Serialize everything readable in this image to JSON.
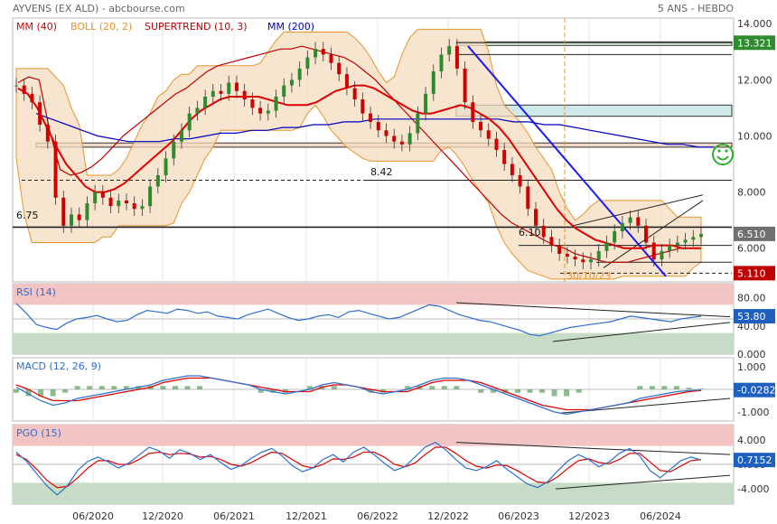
{
  "header": {
    "title": "AYVENS (EX ALD) - abcbourse.com",
    "period": "5 ANS - HEBDO"
  },
  "colors": {
    "ma40": "#e00000",
    "boll": "#e8942a",
    "supertrend": "#c00000",
    "ma200": "#0000c0",
    "price": "#2e8b2e",
    "price_down": "#d00000",
    "rsi": "#2f6fcf",
    "signal": "#e00000",
    "overbought": "#f2c4c4",
    "oversold": "#c6dcc6",
    "badge_price": "#707070",
    "badge_red": "#c00000",
    "badge_blue": "#1f5fbf",
    "badge_green": "#2e8b2e",
    "trend_blue": "#1a1aff",
    "event": "#e8942a"
  },
  "chart_data": [
    {
      "type": "line",
      "panel": "price",
      "legend": [
        {
          "text": "MM (40)",
          "color": "#e00000"
        },
        {
          "text": "BOLL (20, 2)",
          "color": "#e8942a"
        },
        {
          "text": "SUPERTREND (10, 3)",
          "color": "#c00000"
        },
        {
          "text": "MM (200)",
          "color": "#0000c0"
        }
      ],
      "x_ticks": [
        "06/2020",
        "12/2020",
        "06/2021",
        "12/2021",
        "06/2022",
        "12/2022",
        "06/2023",
        "12/2023",
        "06/2024"
      ],
      "y_ticks": [
        "14.000",
        "12.000",
        "10.000",
        "8.000",
        "6.000"
      ],
      "ylim": [
        4.8,
        14.2
      ],
      "badges": [
        {
          "text": "13.321",
          "value": 13.321,
          "color": "#2e8b2e"
        },
        {
          "text": "6.510",
          "value": 6.51,
          "color": "#707070"
        },
        {
          "text": "5.110",
          "value": 5.11,
          "color": "#c00000"
        }
      ],
      "annotations": [
        {
          "text": "8.42",
          "value": 8.42
        },
        {
          "text": "6.75",
          "value": 6.75
        },
        {
          "text": "6.10",
          "value": 6.1
        },
        {
          "text": "30/10/23",
          "date": "30/10/23"
        }
      ],
      "horizontal_levels": [
        13.321,
        12.9,
        11.1,
        10.7,
        9.75,
        9.6,
        8.42,
        6.75,
        6.1,
        5.5,
        5.11
      ],
      "price_series": [
        11.8,
        11.5,
        11.2,
        10.4,
        9.8,
        7.8,
        6.8,
        7.2,
        7.0,
        7.6,
        8.0,
        7.8,
        7.5,
        7.7,
        7.6,
        7.4,
        7.5,
        8.2,
        8.6,
        9.2,
        9.8,
        10.2,
        10.8,
        11.0,
        11.4,
        11.6,
        11.5,
        11.9,
        11.6,
        11.3,
        11.0,
        10.8,
        10.9,
        11.4,
        11.8,
        12.0,
        12.4,
        12.8,
        13.1,
        12.9,
        12.6,
        12.2,
        11.7,
        11.3,
        10.8,
        10.5,
        10.2,
        10.0,
        9.8,
        9.7,
        10.1,
        10.8,
        11.5,
        12.3,
        12.9,
        13.2,
        12.4,
        11.2,
        10.5,
        10.2,
        9.9,
        9.5,
        9.0,
        8.6,
        8.2,
        7.4,
        6.8,
        6.4,
        6.1,
        5.8,
        5.7,
        5.6,
        5.5,
        5.6,
        5.9,
        6.2,
        6.6,
        6.9,
        7.1,
        6.8,
        6.2,
        5.6,
        5.9,
        6.1,
        6.2,
        6.3,
        6.4,
        6.51
      ],
      "ma40": [
        11.7,
        11.5,
        11.0,
        10.3,
        9.6,
        9.0,
        8.6,
        8.2,
        8.0,
        8.0,
        8.1,
        8.3,
        8.6,
        8.9,
        9.2,
        9.5,
        9.8,
        10.2,
        10.6,
        10.9,
        11.1,
        11.3,
        11.4,
        11.4,
        11.4,
        11.4,
        11.3,
        11.2,
        11.1,
        11.1,
        11.1,
        11.2,
        11.4,
        11.6,
        11.7,
        11.8,
        11.8,
        11.7,
        11.5,
        11.3,
        11.1,
        10.9,
        10.8,
        10.8,
        10.9,
        11.0,
        11.1,
        11.0,
        10.8,
        10.6,
        10.3,
        9.9,
        9.4,
        8.9,
        8.4,
        7.9,
        7.4,
        7.0,
        6.7,
        6.5,
        6.3,
        6.2,
        6.1,
        6.0,
        6.0,
        6.0,
        6.1,
        6.1,
        6.1,
        6.0,
        6.0,
        6.0
      ],
      "ma200": [
        10.8,
        10.6,
        10.4,
        10.2,
        10.0,
        9.9,
        9.8,
        9.8,
        9.8,
        9.9,
        9.9,
        10.0,
        10.1,
        10.1,
        10.2,
        10.2,
        10.3,
        10.3,
        10.4,
        10.4,
        10.5,
        10.5,
        10.6,
        10.6,
        10.6,
        10.6,
        10.6,
        10.6,
        10.6,
        10.6,
        10.6,
        10.5,
        10.5,
        10.4,
        10.4,
        10.3,
        10.2,
        10.1,
        10.0,
        9.9,
        9.8,
        9.7,
        9.7,
        9.6,
        9.6
      ],
      "supertrend": [
        11.9,
        12.1,
        12.0,
        10.2,
        8.8,
        8.6,
        8.7,
        8.9,
        9.2,
        9.6,
        10.0,
        10.3,
        10.6,
        10.9,
        11.2,
        11.5,
        11.7,
        12.0,
        12.3,
        12.5,
        12.6,
        12.7,
        12.8,
        12.9,
        13.0,
        13.1,
        13.1,
        13.2,
        13.1,
        13.0,
        12.9,
        12.8,
        12.6,
        12.3,
        12.0,
        11.6,
        11.2,
        10.8,
        10.4,
        10.0,
        9.6,
        9.2,
        8.8,
        8.4,
        8.0,
        7.6,
        7.2,
        6.9,
        6.7,
        6.5,
        6.3,
        6.1,
        6.0,
        5.8,
        5.7,
        5.6,
        5.5,
        5.5,
        5.5,
        5.6,
        5.7,
        5.8,
        5.9,
        6.0,
        6.0,
        6.0
      ]
    },
    {
      "type": "line",
      "panel": "rsi",
      "legend": [
        {
          "text": "RSI (14)",
          "color": "#2f6fcf"
        }
      ],
      "y_ticks": [
        "80.00",
        "40.00",
        "0.000"
      ],
      "ylim": [
        0,
        100
      ],
      "badges": [
        {
          "text": "53.80",
          "value": 53.8,
          "color": "#1f5fbf"
        }
      ],
      "values": [
        72,
        58,
        42,
        38,
        35,
        44,
        50,
        52,
        55,
        50,
        46,
        48,
        56,
        62,
        60,
        58,
        64,
        62,
        58,
        60,
        54,
        52,
        50,
        56,
        60,
        64,
        58,
        52,
        48,
        50,
        54,
        56,
        52,
        60,
        62,
        58,
        54,
        50,
        52,
        58,
        64,
        70,
        68,
        62,
        56,
        52,
        48,
        46,
        42,
        38,
        34,
        28,
        26,
        30,
        34,
        38,
        40,
        42,
        44,
        46,
        50,
        54,
        52,
        50,
        48,
        46,
        50,
        52,
        53.8
      ]
    },
    {
      "type": "line",
      "panel": "macd",
      "legend": [
        {
          "text": "MACD (12, 26, 9)",
          "color": "#2f6fcf"
        }
      ],
      "y_ticks": [
        "1.000",
        "0.000",
        "-1.000"
      ],
      "ylim": [
        -1.4,
        1.4
      ],
      "badges": [
        {
          "text": "-0.0282",
          "value": -0.0282,
          "color": "#1f5fbf"
        }
      ],
      "macd": [
        0.1,
        -0.2,
        -0.5,
        -0.7,
        -0.6,
        -0.4,
        -0.3,
        -0.2,
        -0.1,
        0.0,
        0.1,
        0.2,
        0.4,
        0.5,
        0.6,
        0.6,
        0.5,
        0.4,
        0.3,
        0.2,
        0.0,
        -0.1,
        -0.2,
        -0.1,
        0.0,
        0.2,
        0.3,
        0.2,
        0.1,
        -0.1,
        -0.2,
        -0.1,
        0.0,
        0.2,
        0.4,
        0.5,
        0.5,
        0.4,
        0.2,
        0.0,
        -0.2,
        -0.4,
        -0.6,
        -0.8,
        -1.0,
        -1.1,
        -1.0,
        -0.9,
        -0.8,
        -0.7,
        -0.6,
        -0.4,
        -0.3,
        -0.2,
        -0.1,
        -0.05,
        -0.03
      ],
      "signal": [
        0.2,
        0.0,
        -0.3,
        -0.5,
        -0.5,
        -0.5,
        -0.4,
        -0.3,
        -0.2,
        -0.1,
        0.0,
        0.1,
        0.3,
        0.4,
        0.5,
        0.5,
        0.5,
        0.4,
        0.3,
        0.2,
        0.1,
        0.0,
        -0.1,
        -0.1,
        -0.1,
        0.1,
        0.2,
        0.2,
        0.1,
        0.0,
        -0.1,
        -0.1,
        -0.1,
        0.1,
        0.3,
        0.4,
        0.4,
        0.4,
        0.3,
        0.1,
        -0.1,
        -0.3,
        -0.5,
        -0.7,
        -0.8,
        -0.9,
        -0.9,
        -0.9,
        -0.8,
        -0.7,
        -0.6,
        -0.5,
        -0.4,
        -0.3,
        -0.2,
        -0.1,
        -0.05
      ]
    },
    {
      "type": "line",
      "panel": "pgo",
      "legend": [
        {
          "text": "PGO (15)",
          "color": "#2f6fcf"
        }
      ],
      "y_ticks": [
        "4.000",
        "0.000",
        "-4.000"
      ],
      "ylim": [
        -6.5,
        6.5
      ],
      "badges": [
        {
          "text": "0.7152",
          "value": 0.7152,
          "color": "#1f5fbf"
        }
      ],
      "values": [
        2.0,
        0.5,
        -1.5,
        -3.5,
        -5.0,
        -3.5,
        -1.0,
        0.5,
        1.2,
        0.4,
        -0.6,
        0.2,
        1.5,
        2.8,
        2.2,
        1.0,
        2.4,
        1.8,
        0.8,
        1.6,
        0.3,
        -0.8,
        -0.2,
        1.0,
        2.0,
        2.6,
        1.4,
        -0.2,
        -1.2,
        -0.6,
        0.8,
        1.6,
        0.4,
        2.0,
        2.8,
        1.6,
        0.2,
        -1.0,
        -0.4,
        1.2,
        2.8,
        3.6,
        2.4,
        0.8,
        -0.6,
        -1.0,
        -0.4,
        0.6,
        -0.8,
        -2.0,
        -3.2,
        -3.8,
        -2.8,
        -1.0,
        0.6,
        1.6,
        0.8,
        -0.4,
        0.4,
        1.8,
        2.6,
        1.4,
        -1.0,
        -2.2,
        -0.8,
        0.6,
        1.2,
        0.7152
      ],
      "signal": [
        1.6,
        0.8,
        -0.8,
        -2.6,
        -3.8,
        -3.6,
        -2.2,
        -0.6,
        0.6,
        0.6,
        0.0,
        0.0,
        0.8,
        1.8,
        2.0,
        1.6,
        1.8,
        1.7,
        1.2,
        1.3,
        0.8,
        0.0,
        -0.3,
        0.3,
        1.2,
        2.0,
        1.8,
        0.8,
        -0.2,
        -0.6,
        0.0,
        0.9,
        0.8,
        1.2,
        2.0,
        2.0,
        1.2,
        0.0,
        -0.4,
        0.2,
        1.6,
        2.8,
        2.8,
        1.8,
        0.6,
        -0.3,
        -0.6,
        -0.1,
        -0.2,
        -1.0,
        -2.0,
        -2.9,
        -3.0,
        -2.0,
        -0.6,
        0.6,
        0.9,
        0.3,
        0.1,
        0.8,
        1.8,
        1.8,
        0.4,
        -1.0,
        -1.2,
        -0.3,
        0.6,
        0.8
      ]
    }
  ]
}
